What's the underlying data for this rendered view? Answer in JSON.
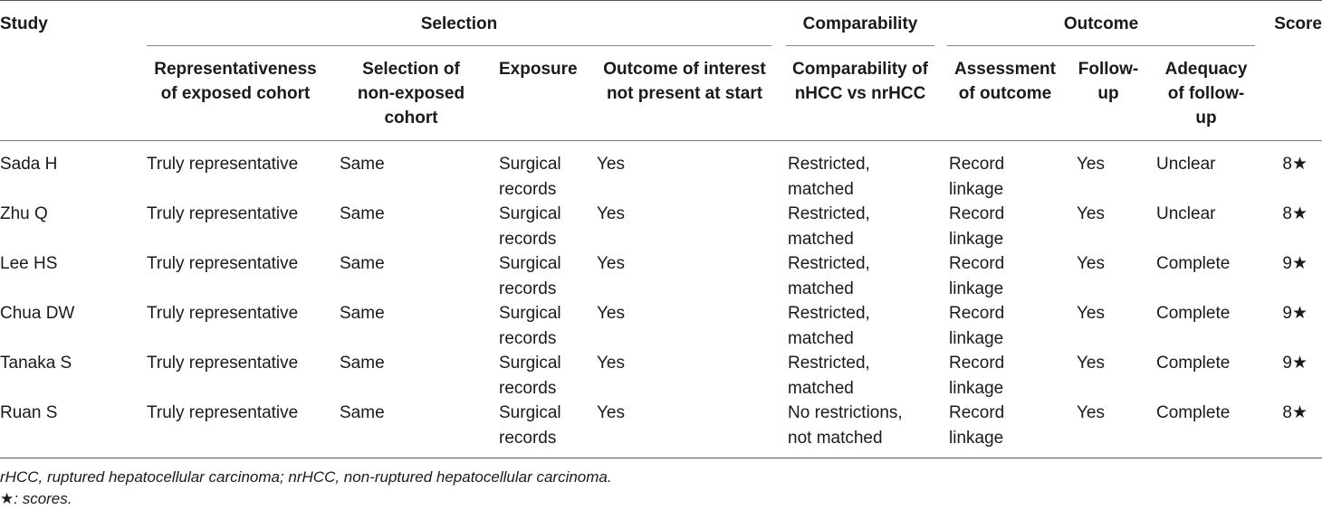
{
  "table": {
    "group_headers": {
      "study": "Study",
      "selection": "Selection",
      "comparability": "Comparability",
      "outcome": "Outcome",
      "score": "Score"
    },
    "sub_headers": {
      "representativeness": [
        "Representativeness",
        "of exposed cohort"
      ],
      "selection_non_exposed": [
        "Selection of",
        "non-exposed",
        "cohort"
      ],
      "exposure": [
        "Exposure"
      ],
      "outcome_not_present": [
        "Outcome of interest",
        "not present at start"
      ],
      "comparability": [
        "Comparability of",
        "nHCC vs nrHCC"
      ],
      "assessment": [
        "Assessment",
        "of outcome"
      ],
      "follow_up": [
        "Follow-",
        "up"
      ],
      "adequacy": [
        "Adequacy",
        "of follow-",
        "up"
      ]
    },
    "rows": [
      {
        "study": "Sada H",
        "representativeness": "Truly representative",
        "selection": "Same",
        "exposure": [
          "Surgical",
          "records"
        ],
        "outcome_absent": "Yes",
        "comparability": [
          "Restricted,",
          "matched"
        ],
        "assessment": [
          "Record",
          "linkage"
        ],
        "follow_up": "Yes",
        "adequacy": "Unclear",
        "score": "8★"
      },
      {
        "study": "Zhu Q",
        "representativeness": "Truly representative",
        "selection": "Same",
        "exposure": [
          "Surgical",
          "records"
        ],
        "outcome_absent": "Yes",
        "comparability": [
          "Restricted,",
          "matched"
        ],
        "assessment": [
          "Record",
          "linkage"
        ],
        "follow_up": "Yes",
        "adequacy": "Unclear",
        "score": "8★"
      },
      {
        "study": "Lee HS",
        "representativeness": "Truly representative",
        "selection": "Same",
        "exposure": [
          "Surgical",
          "records"
        ],
        "outcome_absent": "Yes",
        "comparability": [
          "Restricted,",
          "matched"
        ],
        "assessment": [
          "Record",
          "linkage"
        ],
        "follow_up": "Yes",
        "adequacy": "Complete",
        "score": "9★"
      },
      {
        "study": "Chua DW",
        "representativeness": "Truly representative",
        "selection": "Same",
        "exposure": [
          "Surgical",
          "records"
        ],
        "outcome_absent": "Yes",
        "comparability": [
          "Restricted,",
          "matched"
        ],
        "assessment": [
          "Record",
          "linkage"
        ],
        "follow_up": "Yes",
        "adequacy": "Complete",
        "score": "9★"
      },
      {
        "study": "Tanaka S",
        "representativeness": "Truly representative",
        "selection": "Same",
        "exposure": [
          "Surgical",
          "records"
        ],
        "outcome_absent": "Yes",
        "comparability": [
          "Restricted,",
          "matched"
        ],
        "assessment": [
          "Record",
          "linkage"
        ],
        "follow_up": "Yes",
        "adequacy": "Complete",
        "score": "9★"
      },
      {
        "study": "Ruan S",
        "representativeness": "Truly representative",
        "selection": "Same",
        "exposure": [
          "Surgical",
          "records"
        ],
        "outcome_absent": "Yes",
        "comparability": [
          "No restrictions,",
          "not matched"
        ],
        "assessment": [
          "Record",
          "linkage"
        ],
        "follow_up": "Yes",
        "adequacy": "Complete",
        "score": "8★"
      }
    ]
  },
  "footnotes": {
    "abbreviations": "rHCC, ruptured hepatocellular carcinoma; nrHCC, non-ruptured hepatocellular carcinoma.",
    "star_symbol": "★",
    "star_note": ": scores."
  }
}
